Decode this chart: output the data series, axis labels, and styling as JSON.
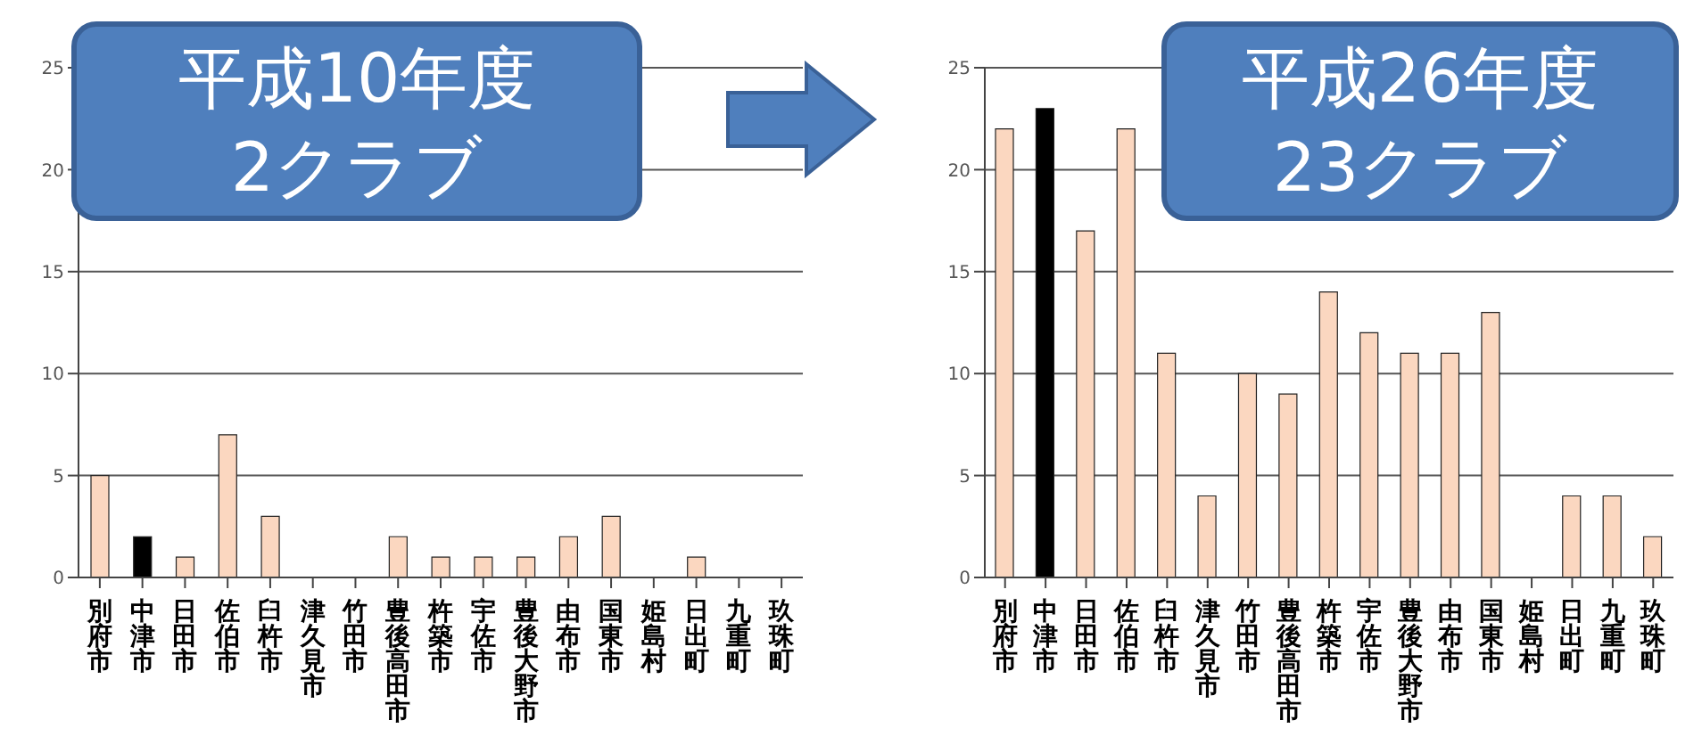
{
  "chart_data": [
    {
      "type": "bar",
      "title": "平成10年度",
      "subtitle": "2クラブ",
      "categories": [
        "別府市",
        "中津市",
        "日田市",
        "佐伯市",
        "臼杵市",
        "津久見市",
        "竹田市",
        "豊後高田市",
        "杵築市",
        "宇佐市",
        "豊後大野市",
        "由布市",
        "国東市",
        "姫島村",
        "日出町",
        "九重町",
        "玖珠町"
      ],
      "values": [
        5,
        2,
        1,
        7,
        3,
        0,
        0,
        2,
        1,
        1,
        1,
        2,
        3,
        0,
        1,
        0,
        0
      ],
      "colors": [
        "#fbd7c0",
        "#000000",
        "#fbd7c0",
        "#fbd7c0",
        "#fbd7c0",
        "#fbd7c0",
        "#fbd7c0",
        "#fbd7c0",
        "#fbd7c0",
        "#fbd7c0",
        "#fbd7c0",
        "#fbd7c0",
        "#fbd7c0",
        "#fbd7c0",
        "#fbd7c0",
        "#fbd7c0",
        "#fbd7c0"
      ],
      "ylim": [
        0,
        25
      ],
      "yticks": [
        0,
        5,
        10,
        15,
        20,
        25
      ],
      "grid": "y"
    },
    {
      "type": "bar",
      "title": "平成26年度",
      "subtitle": "23クラブ",
      "categories": [
        "別府市",
        "中津市",
        "日田市",
        "佐伯市",
        "臼杵市",
        "津久見市",
        "竹田市",
        "豊後高田市",
        "杵築市",
        "宇佐市",
        "豊後大野市",
        "由布市",
        "国東市",
        "姫島村",
        "日出町",
        "九重町",
        "玖珠町"
      ],
      "values": [
        22,
        23,
        17,
        22,
        11,
        4,
        10,
        9,
        14,
        12,
        11,
        11,
        13,
        0,
        4,
        4,
        2
      ],
      "colors": [
        "#fbd7c0",
        "#000000",
        "#fbd7c0",
        "#fbd7c0",
        "#fbd7c0",
        "#fbd7c0",
        "#fbd7c0",
        "#fbd7c0",
        "#fbd7c0",
        "#fbd7c0",
        "#fbd7c0",
        "#fbd7c0",
        "#fbd7c0",
        "#fbd7c0",
        "#fbd7c0",
        "#fbd7c0",
        "#fbd7c0"
      ],
      "ylim": [
        0,
        25
      ],
      "yticks": [
        0,
        5,
        10,
        15,
        20,
        25
      ],
      "grid": "y"
    }
  ]
}
